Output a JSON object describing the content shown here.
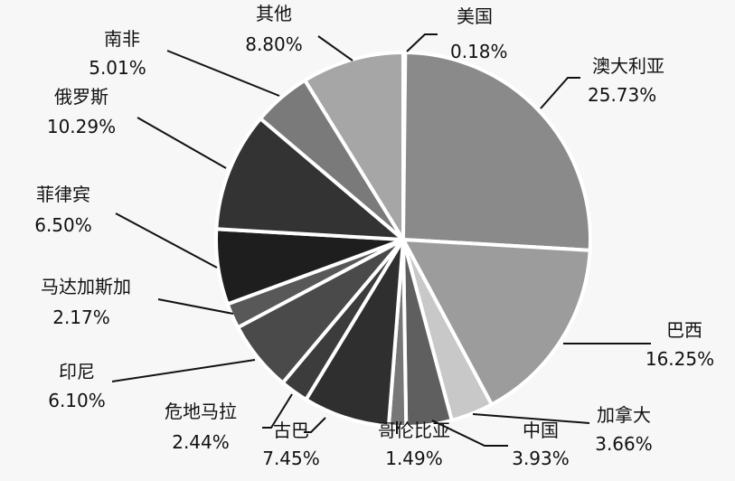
{
  "chart_data": {
    "type": "pie",
    "title": "",
    "start_from": "top",
    "direction": "clockwise",
    "slices": [
      {
        "name": "美国",
        "value": 0.18,
        "label": "0.18%",
        "color": "#6e6e6e"
      },
      {
        "name": "澳大利亚",
        "value": 25.73,
        "label": "25.73%",
        "color": "#8a8a8a"
      },
      {
        "name": "巴西",
        "value": 16.25,
        "label": "16.25%",
        "color": "#9c9c9c"
      },
      {
        "name": "加拿大",
        "value": 3.66,
        "label": "3.66%",
        "color": "#c8c8c8"
      },
      {
        "name": "中国",
        "value": 3.93,
        "label": "3.93%",
        "color": "#5f5f5f"
      },
      {
        "name": "哥伦比亚",
        "value": 1.49,
        "label": "1.49%",
        "color": "#777777"
      },
      {
        "name": "古巴",
        "value": 7.45,
        "label": "7.45%",
        "color": "#2f2f2f"
      },
      {
        "name": "危地马拉",
        "value": 2.44,
        "label": "2.44%",
        "color": "#3c3c3c"
      },
      {
        "name": "印尼",
        "value": 6.1,
        "label": "6.10%",
        "color": "#4a4a4a"
      },
      {
        "name": "马达加斯加",
        "value": 2.17,
        "label": "2.17%",
        "color": "#585858"
      },
      {
        "name": "菲律宾",
        "value": 6.5,
        "label": "6.50%",
        "color": "#1e1e1e"
      },
      {
        "name": "俄罗斯",
        "value": 10.29,
        "label": "10.29%",
        "color": "#333333"
      },
      {
        "name": "南非",
        "value": 5.01,
        "label": "5.01%",
        "color": "#7a7a7a"
      },
      {
        "name": "其他",
        "value": 8.8,
        "label": "8.80%",
        "color": "#a6a6a6"
      }
    ]
  }
}
